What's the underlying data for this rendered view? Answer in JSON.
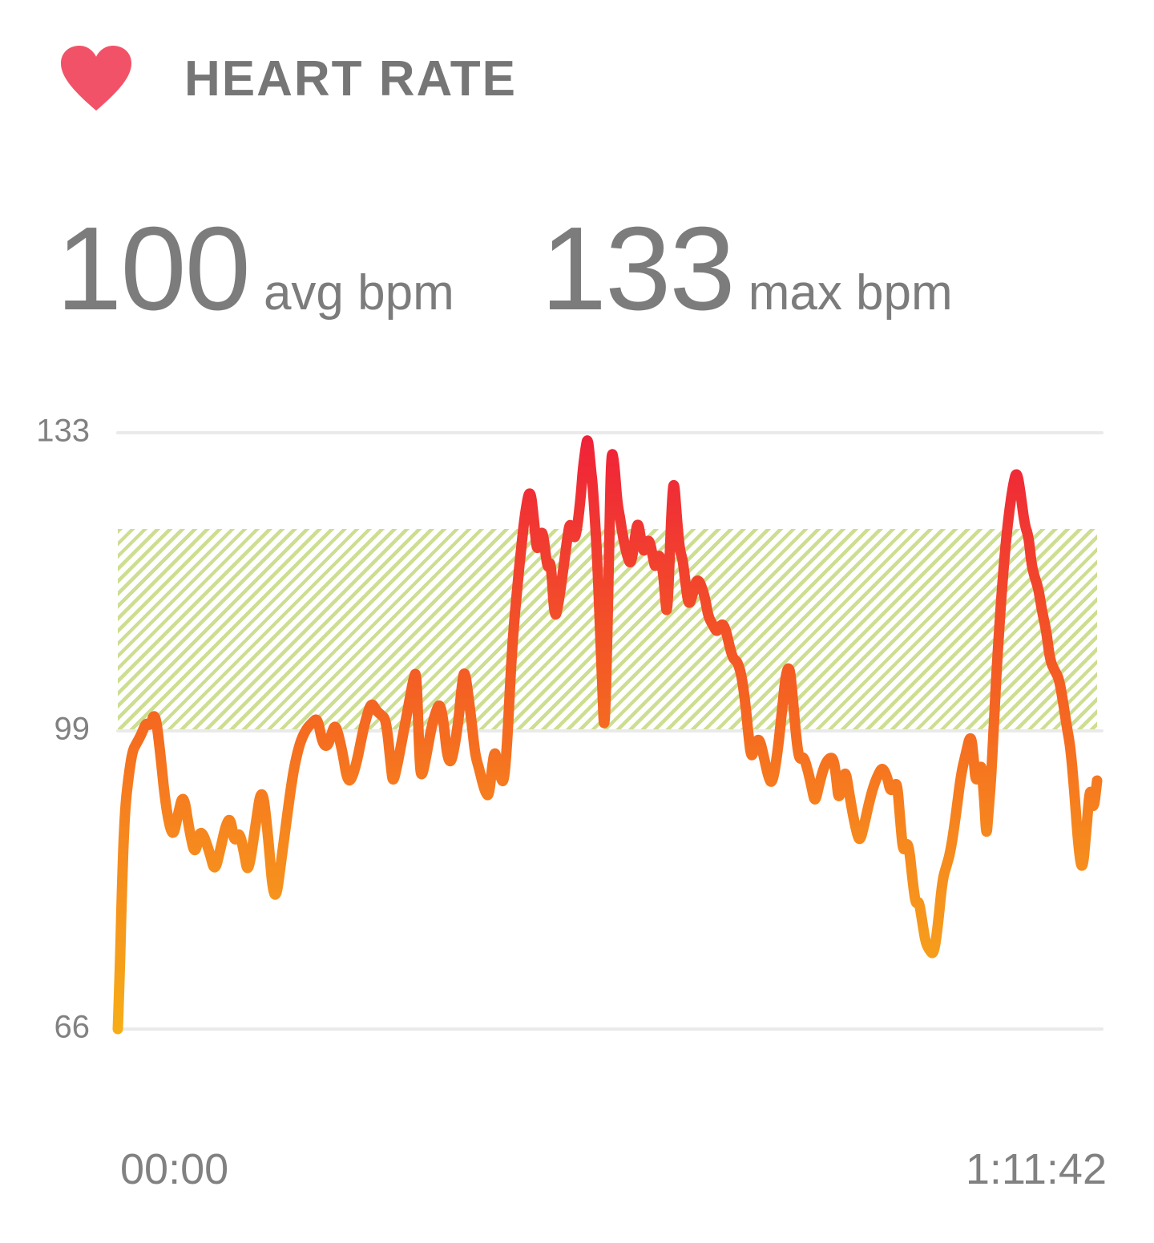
{
  "header": {
    "title": "HEART RATE",
    "icon": "heart-icon",
    "icon_color": "#F25268",
    "title_color": "#767676"
  },
  "stats": [
    {
      "value": "100",
      "label": "avg bpm"
    },
    {
      "value": "133",
      "label": "max bpm"
    }
  ],
  "chart_data": {
    "type": "line",
    "series_name": "heart rate (bpm) over workout time",
    "y_axis": {
      "ticks": [
        "133",
        "99",
        "66"
      ],
      "min": 66,
      "max": 133,
      "unit": "bpm"
    },
    "x_axis": {
      "start_label": "00:00",
      "end_label": "1:11:42",
      "duration_seconds": 4302
    },
    "target_zone": {
      "min_bpm": 99,
      "max_bpm": 122,
      "style": "diagonal-hatch",
      "hatch_color": "#CDDE91"
    },
    "grid_color": "#EAEAEA",
    "label_color": "#818181",
    "avg_bpm": 100,
    "max_bpm": 133,
    "line_gradient": [
      {
        "bpm": 133,
        "color": "#EF2139"
      },
      {
        "bpm": 121,
        "color": "#F13A31"
      },
      {
        "bpm": 110,
        "color": "#F35327"
      },
      {
        "bpm": 99,
        "color": "#F56B20"
      },
      {
        "bpm": 88,
        "color": "#F6861E"
      },
      {
        "bpm": 76,
        "color": "#F69A1C"
      },
      {
        "bpm": 66,
        "color": "#F7AD17"
      }
    ],
    "series": [
      {
        "name": "heart_rate",
        "points_format": "[fraction_of_duration, bpm]",
        "points": [
          [
            0,
            66
          ],
          [
            0.002,
            72
          ],
          [
            0.004,
            81
          ],
          [
            0.007,
            90
          ],
          [
            0.011,
            94
          ],
          [
            0.015,
            96.8
          ],
          [
            0.019,
            97.6
          ],
          [
            0.024,
            98.6
          ],
          [
            0.029,
            100
          ],
          [
            0.033,
            99.5
          ],
          [
            0.038,
            101.3
          ],
          [
            0.043,
            97
          ],
          [
            0.049,
            90.5
          ],
          [
            0.056,
            87
          ],
          [
            0.061,
            89.5
          ],
          [
            0.067,
            92.3
          ],
          [
            0.073,
            88
          ],
          [
            0.079,
            85
          ],
          [
            0.084,
            88.5
          ],
          [
            0.094,
            85.5
          ],
          [
            0.099,
            83.3
          ],
          [
            0.105,
            86
          ],
          [
            0.11,
            88.5
          ],
          [
            0.115,
            89.5
          ],
          [
            0.119,
            86.5
          ],
          [
            0.124,
            88
          ],
          [
            0.129,
            85.5
          ],
          [
            0.133,
            83
          ],
          [
            0.14,
            88
          ],
          [
            0.147,
            93.3
          ],
          [
            0.153,
            88
          ],
          [
            0.16,
            79
          ],
          [
            0.168,
            85.5
          ],
          [
            0.177,
            93
          ],
          [
            0.182,
            96
          ],
          [
            0.187,
            98
          ],
          [
            0.193,
            99.3
          ],
          [
            0.199,
            100
          ],
          [
            0.204,
            100.5
          ],
          [
            0.209,
            97.6
          ],
          [
            0.214,
            97.2
          ],
          [
            0.218,
            98.6
          ],
          [
            0.222,
            99.8
          ],
          [
            0.226,
            98.3
          ],
          [
            0.23,
            96.3
          ],
          [
            0.234,
            93.7
          ],
          [
            0.238,
            93.4
          ],
          [
            0.244,
            95.5
          ],
          [
            0.25,
            98.8
          ],
          [
            0.254,
            100.6
          ],
          [
            0.259,
            102.3
          ],
          [
            0.264,
            101.3
          ],
          [
            0.269,
            100.8
          ],
          [
            0.274,
            100.3
          ],
          [
            0.279,
            95
          ],
          [
            0.281,
            93.1
          ],
          [
            0.286,
            95.5
          ],
          [
            0.291,
            98.4
          ],
          [
            0.297,
            102
          ],
          [
            0.302,
            105
          ],
          [
            0.305,
            105.9
          ],
          [
            0.308,
            95.9
          ],
          [
            0.31,
            93.6
          ],
          [
            0.315,
            96.2
          ],
          [
            0.32,
            99.3
          ],
          [
            0.325,
            101.3
          ],
          [
            0.329,
            102.2
          ],
          [
            0.333,
            99.8
          ],
          [
            0.336,
            96.4
          ],
          [
            0.34,
            95.3
          ],
          [
            0.344,
            97.3
          ],
          [
            0.348,
            100.3
          ],
          [
            0.351,
            103.9
          ],
          [
            0.354,
            106.2
          ],
          [
            0.358,
            103
          ],
          [
            0.362,
            99.3
          ],
          [
            0.365,
            96.3
          ],
          [
            0.369,
            94.8
          ],
          [
            0.372,
            93.4
          ],
          [
            0.376,
            92
          ],
          [
            0.379,
            91.8
          ],
          [
            0.382,
            94.8
          ],
          [
            0.385,
            97
          ],
          [
            0.388,
            95.1
          ],
          [
            0.391,
            93.8
          ],
          [
            0.394,
            93.2
          ],
          [
            0.397,
            96.6
          ],
          [
            0.4,
            102.9
          ],
          [
            0.403,
            109.2
          ],
          [
            0.408,
            115.5
          ],
          [
            0.412,
            120
          ],
          [
            0.416,
            124
          ],
          [
            0.421,
            126.9
          ],
          [
            0.425,
            123
          ],
          [
            0.428,
            119.3
          ],
          [
            0.431,
            121
          ],
          [
            0.434,
            122
          ],
          [
            0.439,
            117.1
          ],
          [
            0.442,
            118.8
          ],
          [
            0.446,
            111.5
          ],
          [
            0.45,
            113.5
          ],
          [
            0.455,
            117.5
          ],
          [
            0.459,
            121
          ],
          [
            0.462,
            123
          ],
          [
            0.466,
            120.7
          ],
          [
            0.469,
            122
          ],
          [
            0.473,
            126
          ],
          [
            0.475,
            129
          ],
          [
            0.478,
            131.5
          ],
          [
            0.48,
            132.5
          ],
          [
            0.483,
            129
          ],
          [
            0.485,
            127
          ],
          [
            0.489,
            120
          ],
          [
            0.492,
            112
          ],
          [
            0.495,
            103
          ],
          [
            0.497,
            98.2
          ],
          [
            0.5,
            110
          ],
          [
            0.502,
            122
          ],
          [
            0.504,
            131.3
          ],
          [
            0.507,
            129.5
          ],
          [
            0.51,
            125
          ],
          [
            0.513,
            123.2
          ],
          [
            0.516,
            121
          ],
          [
            0.52,
            119
          ],
          [
            0.524,
            117.8
          ],
          [
            0.528,
            121
          ],
          [
            0.531,
            123
          ],
          [
            0.534,
            121
          ],
          [
            0.537,
            119.2
          ],
          [
            0.54,
            120.5
          ],
          [
            0.543,
            120.8
          ],
          [
            0.547,
            118.5
          ],
          [
            0.549,
            117.5
          ],
          [
            0.553,
            119.5
          ],
          [
            0.557,
            117
          ],
          [
            0.559,
            114
          ],
          [
            0.561,
            112
          ],
          [
            0.564,
            120
          ],
          [
            0.566,
            125.5
          ],
          [
            0.568,
            127.8
          ],
          [
            0.571,
            123
          ],
          [
            0.574,
            119.5
          ],
          [
            0.577,
            118.5
          ],
          [
            0.58,
            115.5
          ],
          [
            0.583,
            113.2
          ],
          [
            0.587,
            114.5
          ],
          [
            0.59,
            116
          ],
          [
            0.593,
            116.2
          ],
          [
            0.596,
            115.5
          ],
          [
            0.6,
            114
          ],
          [
            0.603,
            112
          ],
          [
            0.608,
            111
          ],
          [
            0.612,
            110.2
          ],
          [
            0.616,
            111.2
          ],
          [
            0.62,
            111
          ],
          [
            0.627,
            107.5
          ],
          [
            0.631,
            107
          ],
          [
            0.633,
            106.8
          ],
          [
            0.637,
            105.3
          ],
          [
            0.641,
            102
          ],
          [
            0.644,
            98.5
          ],
          [
            0.647,
            95.8
          ],
          [
            0.651,
            97.5
          ],
          [
            0.655,
            98.3
          ],
          [
            0.66,
            96
          ],
          [
            0.664,
            94
          ],
          [
            0.668,
            93
          ],
          [
            0.673,
            96
          ],
          [
            0.678,
            101
          ],
          [
            0.682,
            105.5
          ],
          [
            0.686,
            106.5
          ],
          [
            0.689,
            103
          ],
          [
            0.693,
            98
          ],
          [
            0.696,
            95.7
          ],
          [
            0.7,
            96.3
          ],
          [
            0.705,
            94.5
          ],
          [
            0.709,
            92.5
          ],
          [
            0.712,
            91
          ],
          [
            0.716,
            93
          ],
          [
            0.721,
            95
          ],
          [
            0.726,
            96
          ],
          [
            0.731,
            96
          ],
          [
            0.734,
            93.5
          ],
          [
            0.736,
            91.3
          ],
          [
            0.74,
            93
          ],
          [
            0.743,
            94.8
          ],
          [
            0.747,
            92
          ],
          [
            0.751,
            89.5
          ],
          [
            0.755,
            87.5
          ],
          [
            0.758,
            86.8
          ],
          [
            0.762,
            88.5
          ],
          [
            0.767,
            91
          ],
          [
            0.772,
            93
          ],
          [
            0.777,
            94.3
          ],
          [
            0.781,
            95
          ],
          [
            0.786,
            93.8
          ],
          [
            0.789,
            92.2
          ],
          [
            0.793,
            93
          ],
          [
            0.796,
            93.2
          ],
          [
            0.799,
            89
          ],
          [
            0.802,
            85.5
          ],
          [
            0.805,
            86.6
          ],
          [
            0.808,
            86.2
          ],
          [
            0.812,
            82
          ],
          [
            0.815,
            79.7
          ],
          [
            0.818,
            80.3
          ],
          [
            0.822,
            77.5
          ],
          [
            0.825,
            75.5
          ],
          [
            0.829,
            74.7
          ],
          [
            0.833,
            74.2
          ],
          [
            0.837,
            77
          ],
          [
            0.842,
            82.5
          ],
          [
            0.846,
            84
          ],
          [
            0.85,
            85.5
          ],
          [
            0.855,
            89
          ],
          [
            0.861,
            94.2
          ],
          [
            0.866,
            96.5
          ],
          [
            0.871,
            98.8
          ],
          [
            0.874,
            96
          ],
          [
            0.876,
            93.2
          ],
          [
            0.88,
            94.5
          ],
          [
            0.882,
            95.4
          ],
          [
            0.885,
            91
          ],
          [
            0.887,
            87
          ],
          [
            0.889,
            90
          ],
          [
            0.892,
            94
          ],
          [
            0.895,
            101
          ],
          [
            0.899,
            109
          ],
          [
            0.904,
            117
          ],
          [
            0.909,
            123
          ],
          [
            0.914,
            127
          ],
          [
            0.918,
            128.8
          ],
          [
            0.922,
            126
          ],
          [
            0.926,
            122.5
          ],
          [
            0.93,
            121.2
          ],
          [
            0.933,
            118
          ],
          [
            0.936,
            116.6
          ],
          [
            0.94,
            115.3
          ],
          [
            0.944,
            112.5
          ],
          [
            0.948,
            110.5
          ],
          [
            0.952,
            107
          ],
          [
            0.957,
            105.8
          ],
          [
            0.961,
            105
          ],
          [
            0.965,
            102.5
          ],
          [
            0.969,
            99.5
          ],
          [
            0.973,
            97
          ],
          [
            0.977,
            92
          ],
          [
            0.981,
            86
          ],
          [
            0.985,
            83.2
          ],
          [
            0.989,
            88
          ],
          [
            0.993,
            93.3
          ],
          [
            0.996,
            89.8
          ],
          [
            1,
            93.5
          ]
        ]
      }
    ]
  }
}
